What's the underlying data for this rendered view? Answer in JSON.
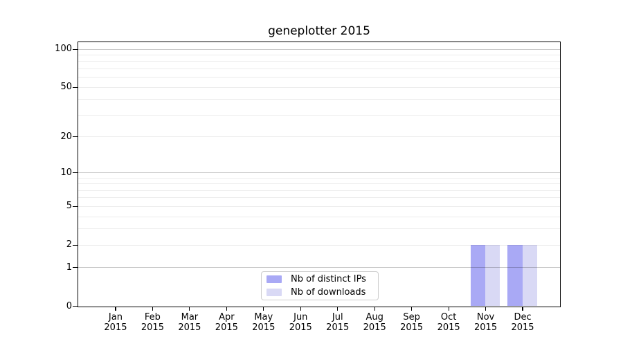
{
  "chart_data": {
    "type": "bar",
    "title": "geneplotter 2015",
    "scale": "log1p",
    "ylim": [
      0,
      113
    ],
    "yticks": [
      0,
      1,
      2,
      5,
      10,
      20,
      50,
      100
    ],
    "gridlines": {
      "major": [
        1,
        10,
        100
      ],
      "minor": [
        2,
        3,
        4,
        5,
        6,
        7,
        8,
        9,
        20,
        30,
        40,
        50,
        60,
        70,
        80,
        90
      ]
    },
    "grid_colors": {
      "major": "#c9c9c9",
      "minor": "#ececec"
    },
    "categories": [
      "Jan",
      "Feb",
      "Mar",
      "Apr",
      "May",
      "Jun",
      "Jul",
      "Aug",
      "Sep",
      "Oct",
      "Nov",
      "Dec"
    ],
    "x_year_line": "2015",
    "series": [
      {
        "name": "Nb of distinct IPs",
        "color": "#a9a9f5",
        "values": [
          0,
          0,
          0,
          0,
          0,
          0,
          0,
          0,
          0,
          0,
          2,
          2
        ]
      },
      {
        "name": "Nb of downloads",
        "color": "#d9d9f5",
        "values": [
          0,
          0,
          0,
          0,
          0,
          0,
          0,
          0,
          0,
          0,
          2,
          2
        ]
      }
    ],
    "legend": {
      "position": "lower center",
      "entries": [
        "Nb of distinct IPs",
        "Nb of downloads"
      ]
    }
  }
}
